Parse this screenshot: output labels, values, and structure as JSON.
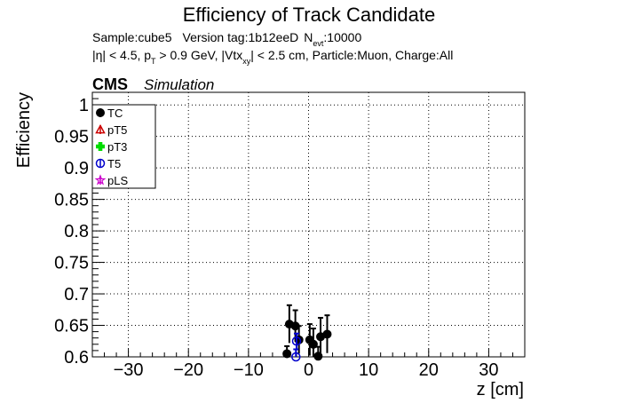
{
  "chart_data": {
    "type": "scatter",
    "title": "Efficiency of Track Candidate",
    "info_line1": {
      "sample": "Sample:cube5",
      "version": "Version tag:1b12eeD",
      "nevt_prefix": "N",
      "nevt_sub": "evt",
      "nevt_value": ":10000"
    },
    "info_line2": {
      "part1": "|η| < 4.5, p",
      "part1_sub": "T",
      "part2": " > 0.9 GeV, |Vtx",
      "part2_sub": "xy",
      "part3": "| < 2.5 cm, Particle:Muon, Charge:All"
    },
    "cms_label": "CMS",
    "sim_label": "Simulation",
    "xlabel": "z [cm]",
    "ylabel": "Efficiency",
    "xlim": [
      -36,
      36
    ],
    "ylim": [
      0.6,
      1.02
    ],
    "x_ticks": [
      -30,
      -20,
      -10,
      0,
      10,
      20,
      30
    ],
    "x_tick_labels": [
      "−30",
      "−20",
      "−10",
      "0",
      "10",
      "20",
      "30"
    ],
    "y_ticks": [
      0.6,
      0.65,
      0.7,
      0.75,
      0.8,
      0.85,
      0.9,
      0.95,
      1.0
    ],
    "y_tick_labels": [
      "0.6",
      "0.65",
      "0.7",
      "0.75",
      "0.8",
      "0.85",
      "0.9",
      "0.95",
      "1"
    ],
    "grid": true,
    "legend_position": "top-left",
    "series": [
      {
        "name": "TC",
        "color": "#000000",
        "marker": "filled-circle",
        "points": [
          {
            "x": -3.6,
            "y": 0.605,
            "err": 0.012
          },
          {
            "x": -3.2,
            "y": 0.652,
            "err": 0.03
          },
          {
            "x": -2.2,
            "y": 0.649,
            "err": 0.025
          },
          {
            "x": -1.6,
            "y": 0.627,
            "err": 0.022
          },
          {
            "x": 0.2,
            "y": 0.627,
            "err": 0.025
          },
          {
            "x": 0.8,
            "y": 0.62,
            "err": 0.025
          },
          {
            "x": 1.6,
            "y": 0.601,
            "err": 0.015
          },
          {
            "x": 2.0,
            "y": 0.632,
            "err": 0.03
          },
          {
            "x": 3.1,
            "y": 0.636,
            "err": 0.03
          }
        ]
      },
      {
        "name": "pT5",
        "color": "#cc0000",
        "marker": "open-triangle",
        "points": []
      },
      {
        "name": "pT3",
        "color": "#00dd00",
        "marker": "filled-cross",
        "points": []
      },
      {
        "name": "T5",
        "color": "#0000cc",
        "marker": "open-circle",
        "points": [
          {
            "x": -2.1,
            "y": 0.6,
            "err": 0.012
          },
          {
            "x": -2.0,
            "y": 0.625,
            "err": 0.012
          }
        ]
      },
      {
        "name": "pLS",
        "color": "#cc00cc",
        "marker": "open-star",
        "points": []
      }
    ]
  }
}
